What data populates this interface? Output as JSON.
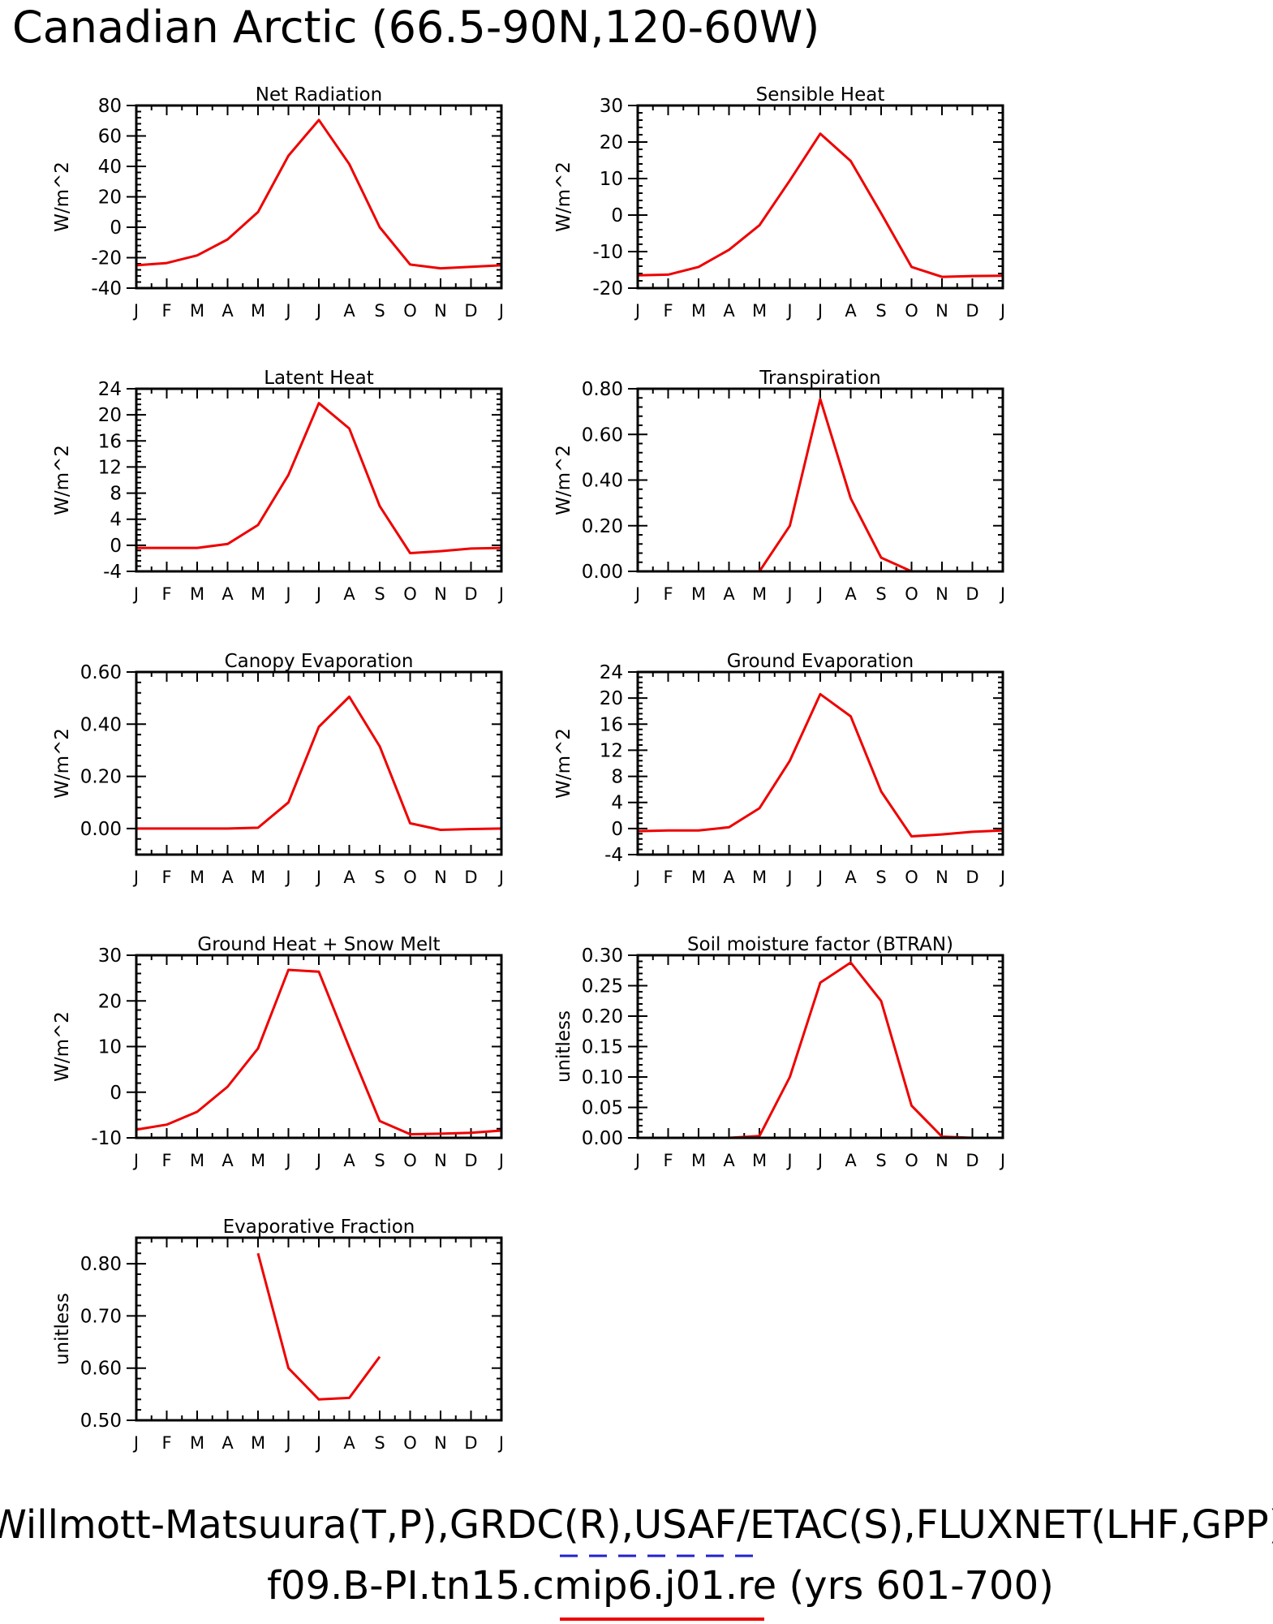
{
  "page": {
    "title": "Canadian Arctic (66.5-90N,120-60W)",
    "footer_line1": "Willmott-Matsuura(T,P),GRDC(R),USAF/ETAC(S),FLUXNET(LHF,GPP)",
    "footer_line2": "f09.B-PI.tn15.cmip6.j01.re (yrs 601-700)",
    "obs_line_color": "#2222cc",
    "model_line_color": "#ee0000"
  },
  "months": [
    "J",
    "F",
    "M",
    "A",
    "M",
    "J",
    "J",
    "A",
    "S",
    "O",
    "N",
    "D",
    "J"
  ],
  "chart_data": [
    {
      "type": "line",
      "title": "Net Radiation",
      "ylabel": "W/m^2",
      "ylim": [
        -40,
        80
      ],
      "yticks": [
        -40,
        -20,
        0,
        20,
        40,
        60,
        80
      ],
      "ytick_labels": [
        "-40",
        "-20",
        "0",
        "20",
        "40",
        "60",
        "80"
      ],
      "x": [
        "J",
        "F",
        "M",
        "A",
        "M",
        "J",
        "J",
        "A",
        "S",
        "O",
        "N",
        "D",
        "J"
      ],
      "series": [
        {
          "values": [
            -25,
            -23.5,
            -18.5,
            -8,
            10,
            47,
            70.5,
            41.5,
            0,
            -24.5,
            -27,
            -26,
            -25
          ]
        }
      ],
      "color": "#ee0000",
      "grid": false
    },
    {
      "type": "line",
      "title": "Sensible Heat",
      "ylabel": "W/m^2",
      "ylim": [
        -20,
        30
      ],
      "yticks": [
        -20,
        -10,
        0,
        10,
        20,
        30
      ],
      "ytick_labels": [
        "-20",
        "-10",
        "0",
        "10",
        "20",
        "30"
      ],
      "x": [
        "J",
        "F",
        "M",
        "A",
        "M",
        "J",
        "J",
        "A",
        "S",
        "O",
        "N",
        "D",
        "J"
      ],
      "series": [
        {
          "values": [
            -16.5,
            -16.3,
            -14.2,
            -9.5,
            -2.8,
            9.5,
            22.3,
            14.8,
            0.5,
            -14.2,
            -16.9,
            -16.7,
            -16.6
          ]
        }
      ],
      "color": "#ee0000",
      "grid": false
    },
    {
      "type": "line",
      "title": "Latent Heat",
      "ylabel": "W/m^2",
      "ylim": [
        -4,
        24
      ],
      "yticks": [
        -4,
        0,
        4,
        8,
        12,
        16,
        20,
        24
      ],
      "ytick_labels": [
        "-4",
        "0",
        "4",
        "8",
        "12",
        "16",
        "20",
        "24"
      ],
      "x": [
        "J",
        "F",
        "M",
        "A",
        "M",
        "J",
        "J",
        "A",
        "S",
        "O",
        "N",
        "D",
        "J"
      ],
      "series": [
        {
          "values": [
            -0.4,
            -0.4,
            -0.4,
            0.2,
            3.1,
            10.8,
            21.8,
            17.9,
            6.0,
            -1.2,
            -0.9,
            -0.5,
            -0.4
          ]
        }
      ],
      "color": "#ee0000",
      "grid": false
    },
    {
      "type": "line",
      "title": "Transpiration",
      "ylabel": "W/m^2",
      "ylim": [
        0,
        0.8
      ],
      "yticks": [
        0,
        0.2,
        0.4,
        0.6,
        0.8
      ],
      "ytick_labels": [
        "0.00",
        "0.20",
        "0.40",
        "0.60",
        "0.80"
      ],
      "x": [
        "J",
        "F",
        "M",
        "A",
        "M",
        "J",
        "J",
        "A",
        "S",
        "O",
        "N",
        "D",
        "J"
      ],
      "series": [
        {
          "values": [
            0,
            0,
            0,
            0,
            0,
            0.2,
            0.755,
            0.32,
            0.06,
            0,
            0,
            0,
            0
          ]
        }
      ],
      "color": "#ee0000",
      "grid": false
    },
    {
      "type": "line",
      "title": "Canopy Evaporation",
      "ylabel": "W/m^2",
      "ylim": [
        -0.1,
        0.6
      ],
      "yticks": [
        0,
        0.2,
        0.4,
        0.6
      ],
      "ytick_labels": [
        "0.00",
        "0.20",
        "0.40",
        "0.60"
      ],
      "x": [
        "J",
        "F",
        "M",
        "A",
        "M",
        "J",
        "J",
        "A",
        "S",
        "O",
        "N",
        "D",
        "J"
      ],
      "series": [
        {
          "values": [
            0,
            0,
            0,
            0,
            0.003,
            0.1,
            0.39,
            0.505,
            0.315,
            0.02,
            -0.005,
            -0.002,
            0
          ]
        }
      ],
      "color": "#ee0000",
      "grid": false
    },
    {
      "type": "line",
      "title": "Ground Evaporation",
      "ylabel": "W/m^2",
      "ylim": [
        -4,
        24
      ],
      "yticks": [
        -4,
        0,
        4,
        8,
        12,
        16,
        20,
        24
      ],
      "ytick_labels": [
        "-4",
        "0",
        "4",
        "8",
        "12",
        "16",
        "20",
        "24"
      ],
      "x": [
        "J",
        "F",
        "M",
        "A",
        "M",
        "J",
        "J",
        "A",
        "S",
        "O",
        "N",
        "D",
        "J"
      ],
      "series": [
        {
          "values": [
            -0.4,
            -0.3,
            -0.3,
            0.2,
            3.1,
            10.4,
            20.6,
            17.2,
            5.7,
            -1.2,
            -0.9,
            -0.5,
            -0.3
          ]
        }
      ],
      "color": "#ee0000",
      "grid": false
    },
    {
      "type": "line",
      "title": "Ground Heat + Snow Melt",
      "ylabel": "W/m^2",
      "ylim": [
        -10,
        30
      ],
      "yticks": [
        -10,
        0,
        10,
        20,
        30
      ],
      "ytick_labels": [
        "-10",
        "0",
        "10",
        "20",
        "30"
      ],
      "x": [
        "J",
        "F",
        "M",
        "A",
        "M",
        "J",
        "J",
        "A",
        "S",
        "O",
        "N",
        "D",
        "J"
      ],
      "series": [
        {
          "values": [
            -8.2,
            -7.1,
            -4.3,
            1.2,
            9.6,
            26.8,
            26.4,
            9.8,
            -6.3,
            -9.2,
            -9.1,
            -8.9,
            -8.4
          ]
        }
      ],
      "color": "#ee0000",
      "grid": false
    },
    {
      "type": "line",
      "title": "Soil moisture factor (BTRAN)",
      "ylabel": "unitless",
      "ylim": [
        0,
        0.3
      ],
      "yticks": [
        0,
        0.05,
        0.1,
        0.15,
        0.2,
        0.25,
        0.3
      ],
      "ytick_labels": [
        "0.00",
        "0.05",
        "0.10",
        "0.15",
        "0.20",
        "0.25",
        "0.30"
      ],
      "x": [
        "J",
        "F",
        "M",
        "A",
        "M",
        "J",
        "J",
        "A",
        "S",
        "O",
        "N",
        "D",
        "J"
      ],
      "series": [
        {
          "values": [
            0,
            0,
            0,
            0,
            0.003,
            0.1,
            0.255,
            0.288,
            0.225,
            0.053,
            0.002,
            0,
            0
          ]
        }
      ],
      "color": "#ee0000",
      "grid": false
    },
    {
      "type": "line",
      "title": "Evaporative Fraction",
      "ylabel": "unitless",
      "ylim": [
        0.5,
        0.85
      ],
      "yticks": [
        0.5,
        0.6,
        0.7,
        0.8
      ],
      "ytick_labels": [
        "0.50",
        "0.60",
        "0.70",
        "0.80"
      ],
      "x": [
        "J",
        "F",
        "M",
        "A",
        "M",
        "J",
        "J",
        "A",
        "S",
        "O",
        "N",
        "D",
        "J"
      ],
      "series": [
        {
          "values": [
            null,
            null,
            null,
            null,
            0.82,
            0.6,
            0.54,
            0.543,
            0.622,
            null,
            null,
            null,
            null
          ]
        }
      ],
      "color": "#ee0000",
      "grid": false
    }
  ]
}
